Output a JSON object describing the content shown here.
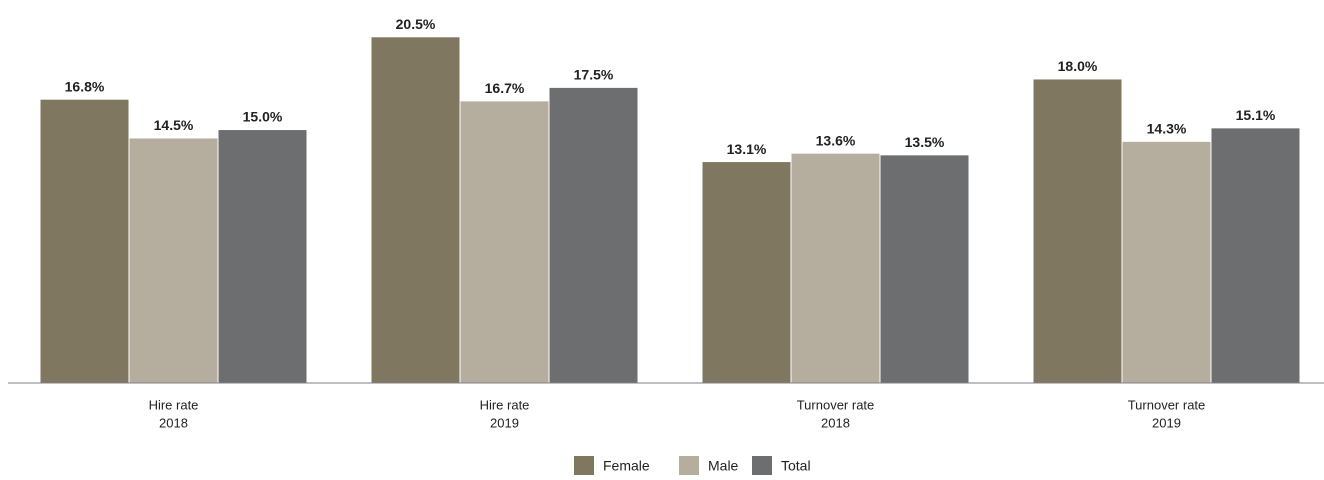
{
  "chart_data": {
    "type": "bar",
    "categories": [
      [
        "Hire rate",
        "2018"
      ],
      [
        "Hire rate",
        "2019"
      ],
      [
        "Turnover rate",
        "2018"
      ],
      [
        "Turnover rate",
        "2019"
      ]
    ],
    "series": [
      {
        "name": "Female",
        "color": "#7f7760",
        "values": [
          16.8,
          20.5,
          13.1,
          18.0
        ],
        "value_labels": [
          "16.8%",
          "20.5%",
          "13.1%",
          "18.0%"
        ]
      },
      {
        "name": "Male",
        "color": "#b5ae9e",
        "values": [
          14.5,
          16.7,
          13.6,
          14.3
        ],
        "value_labels": [
          "14.5%",
          "16.7%",
          "13.6%",
          "14.3%"
        ]
      },
      {
        "name": "Total",
        "color": "#6d6e70",
        "values": [
          15.0,
          17.5,
          13.5,
          15.1
        ],
        "value_labels": [
          "15.0%",
          "17.5%",
          "13.5%",
          "15.1%"
        ]
      }
    ],
    "ylim": [
      0,
      22
    ],
    "legend": "bottom"
  }
}
